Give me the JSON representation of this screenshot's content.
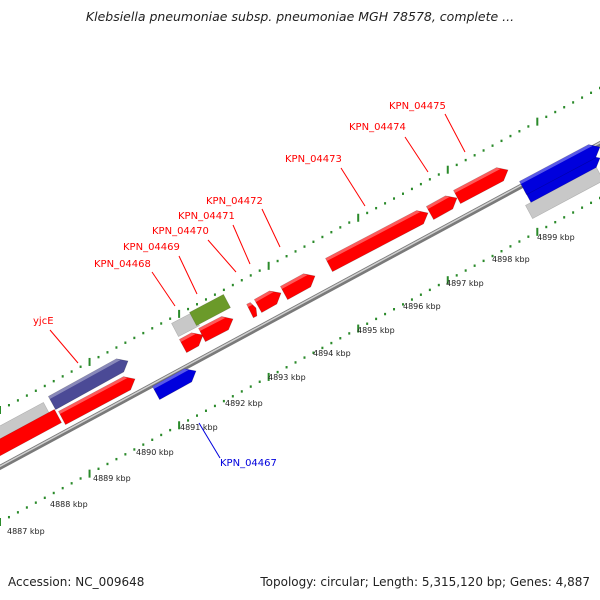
{
  "title": "Klebsiella pneumoniae subsp. pneumoniae MGH 78578, complete ...",
  "footer": {
    "accession": "Accession: NC_009648",
    "summary": "Topology: circular; Length: 5,315,120 bp; Genes: 4,887"
  },
  "ruler": {
    "ticks": [
      "4887 kbp",
      "4888 kbp",
      "4889 kbp",
      "4890 kbp",
      "4891 kbp",
      "4892 kbp",
      "4893 kbp",
      "4894 kbp",
      "4895 kbp",
      "4896 kbp",
      "4897 kbp",
      "4898 kbp",
      "4899 kbp"
    ]
  },
  "colors": {
    "red_gene": "#ff0000",
    "blue_gene": "#0000dd",
    "purple_gene": "#4b4a96",
    "olive_gene": "#6b9a2a",
    "gray_gene": "#c8c8c8",
    "dots_green": "#2a8a2a",
    "backbone": "#9a9a9a"
  },
  "genes": [
    {
      "label": "KPN_04468",
      "color": "red"
    },
    {
      "label": "KPN_04469",
      "color": "red"
    },
    {
      "label": "KPN_04470",
      "color": "red"
    },
    {
      "label": "KPN_04471",
      "color": "red"
    },
    {
      "label": "KPN_04472",
      "color": "red"
    },
    {
      "label": "KPN_04473",
      "color": "red"
    },
    {
      "label": "KPN_04474",
      "color": "red"
    },
    {
      "label": "KPN_04475",
      "color": "red"
    },
    {
      "label": "yjcE",
      "color": "red"
    },
    {
      "label": "KPN_04467",
      "color": "blue"
    }
  ]
}
